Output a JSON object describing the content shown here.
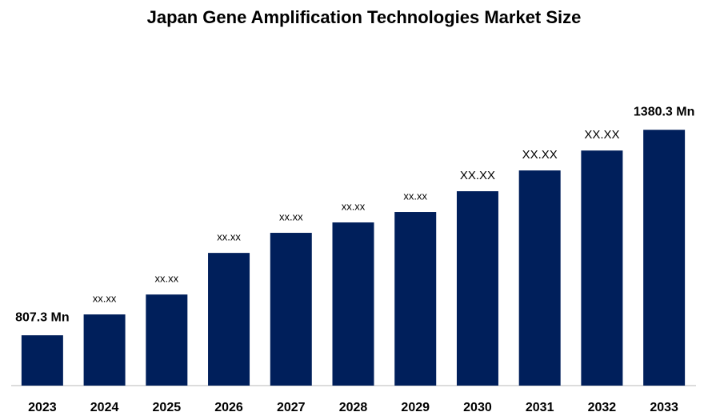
{
  "chart_data": {
    "type": "bar",
    "title": "Japan Gene Amplification Technologies Market Size",
    "categories": [
      "2023",
      "2024",
      "2025",
      "2026",
      "2027",
      "2028",
      "2029",
      "2030",
      "2031",
      "2032",
      "2033"
    ],
    "values": [
      807.3,
      865.5,
      921,
      1037,
      1093,
      1122,
      1151,
      1209,
      1267,
      1322.5,
      1380.3
    ],
    "value_labels": [
      "807.3 Mn",
      "xx.xx",
      "xx.xx",
      "xx.xx",
      "xx.xx",
      "xx.xx",
      "xx.xx",
      "XX.XX",
      "XX.XX",
      "XX.XX",
      "1380.3 Mn"
    ],
    "color": "#001f5b",
    "ylim": [
      667,
      1450
    ]
  }
}
